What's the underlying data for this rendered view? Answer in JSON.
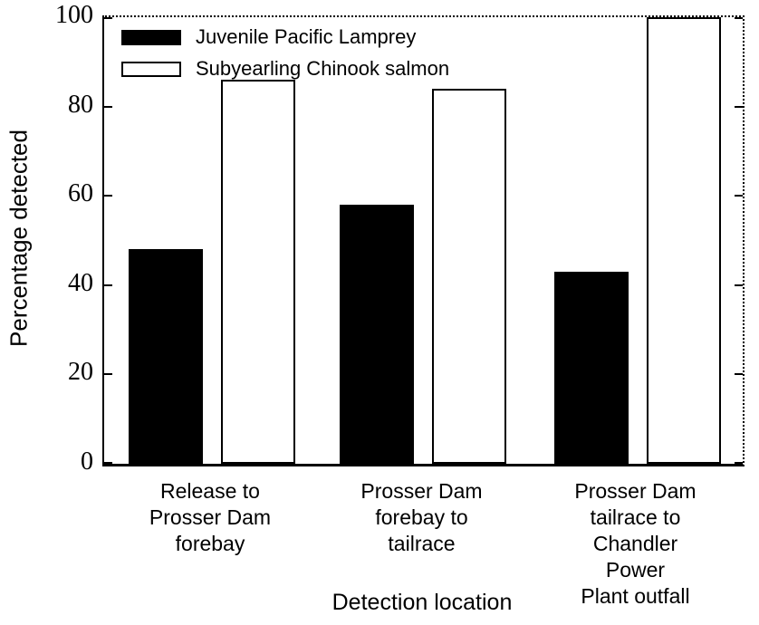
{
  "figure": {
    "x_axis_title": "Detection location",
    "y_axis_title": "Percentage detected",
    "background_color": "#ffffff",
    "axis_color": "#000000",
    "text_color": "#000000"
  },
  "legend": {
    "position": "upper-left-inside",
    "items": [
      {
        "label": "Juvenile Pacific Lamprey",
        "swatch_fill": "#000000",
        "swatch_border": "#000000"
      },
      {
        "label": "Subyearling Chinook salmon",
        "swatch_fill": "#ffffff",
        "swatch_border": "#000000"
      }
    ]
  },
  "chart_data": {
    "type": "bar",
    "title": "",
    "xlabel": "Detection location",
    "ylabel": "Percentage detected",
    "categories": [
      "Release to\nProsser Dam\nforebay",
      "Prosser Dam\nforebay to\ntailrace",
      "Prosser Dam\ntailrace to\nChandler Power\nPlant outfall"
    ],
    "series": [
      {
        "name": "Juvenile Pacific Lamprey",
        "fill": "#000000",
        "border": "#000000",
        "values": [
          48,
          58,
          43
        ]
      },
      {
        "name": "Subyearling Chinook salmon",
        "fill": "#ffffff",
        "border": "#000000",
        "values": [
          86,
          84,
          100
        ]
      }
    ],
    "ylim": [
      0,
      100
    ],
    "yticks": [
      0,
      20,
      40,
      60,
      80,
      100
    ],
    "grid": false,
    "legend_position": "upper-left-inside"
  }
}
